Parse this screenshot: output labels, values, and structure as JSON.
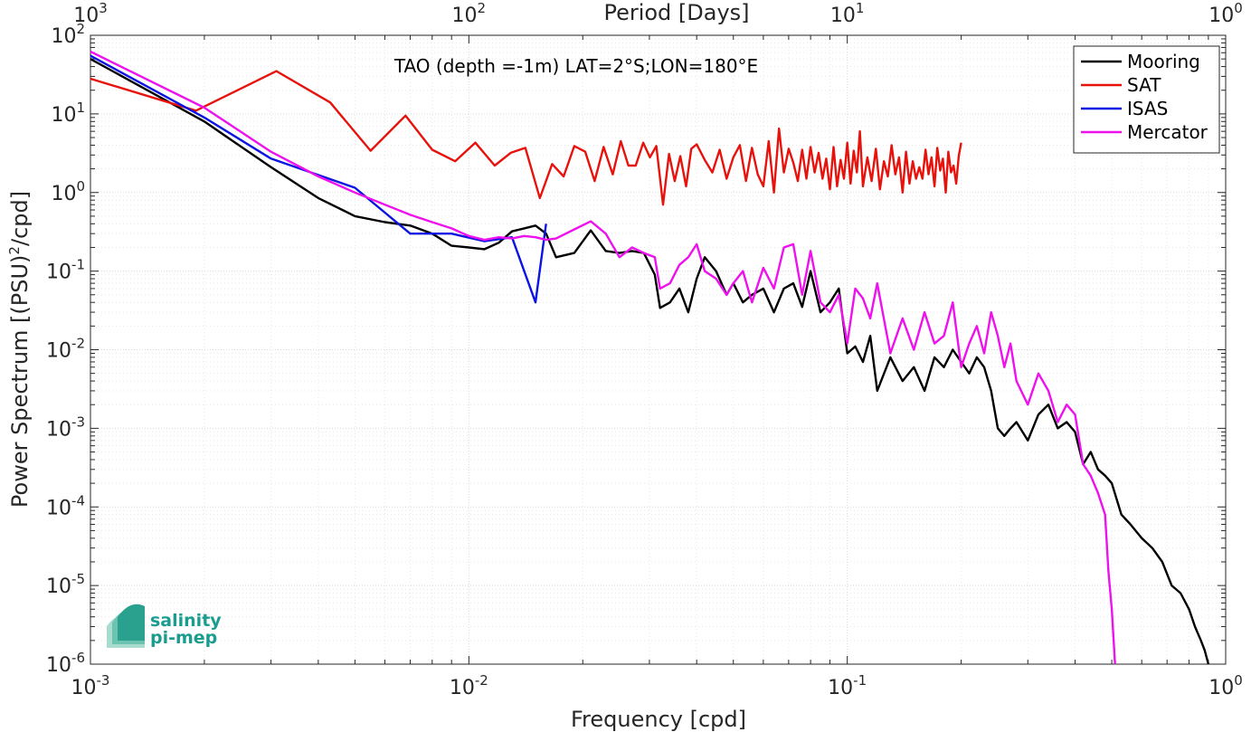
{
  "chart_data": {
    "type": "line",
    "title": "TAO (depth =-1m) LAT=2°S;LON=180°E",
    "xlabel": "Frequency [cpd]",
    "ylabel": "Power Spectrum [(PSU)",
    "ylabel_sup": "2",
    "ylabel_tail": "/cpd]",
    "top_xlabel": "Period [Days]",
    "xscale": "log",
    "yscale": "log",
    "xlim": [
      0.001,
      1
    ],
    "ylim": [
      1e-06,
      100
    ],
    "grid": true,
    "legend_position": "top-right",
    "x_ticks": [
      {
        "base": "10",
        "exp": "-3",
        "value": 0.001
      },
      {
        "base": "10",
        "exp": "-2",
        "value": 0.01
      },
      {
        "base": "10",
        "exp": "-1",
        "value": 0.1
      },
      {
        "base": "10",
        "exp": "0",
        "value": 1
      }
    ],
    "top_ticks": [
      {
        "base": "10",
        "exp": "3",
        "value": 0.001
      },
      {
        "base": "10",
        "exp": "2",
        "value": 0.01
      },
      {
        "base": "10",
        "exp": "1",
        "value": 0.1
      },
      {
        "base": "10",
        "exp": "0",
        "value": 1
      }
    ],
    "y_ticks": [
      {
        "base": "10",
        "exp": "2",
        "value": 100
      },
      {
        "base": "10",
        "exp": "1",
        "value": 10
      },
      {
        "base": "10",
        "exp": "0",
        "value": 1
      },
      {
        "base": "10",
        "exp": "-1",
        "value": 0.1
      },
      {
        "base": "10",
        "exp": "-2",
        "value": 0.01
      },
      {
        "base": "10",
        "exp": "-3",
        "value": 0.001
      },
      {
        "base": "10",
        "exp": "-4",
        "value": 0.0001
      },
      {
        "base": "10",
        "exp": "-5",
        "value": 1e-05
      },
      {
        "base": "10",
        "exp": "-6",
        "value": 1e-06
      }
    ],
    "series": [
      {
        "name": "Mooring",
        "color": "#000000",
        "x": [
          0.001,
          0.002,
          0.003,
          0.004,
          0.005,
          0.006,
          0.007,
          0.008,
          0.009,
          0.01,
          0.011,
          0.012,
          0.013,
          0.014,
          0.015,
          0.016,
          0.017,
          0.019,
          0.021,
          0.023,
          0.025,
          0.027,
          0.029,
          0.031,
          0.032,
          0.034,
          0.036,
          0.038,
          0.04,
          0.042,
          0.045,
          0.048,
          0.05,
          0.053,
          0.056,
          0.06,
          0.064,
          0.068,
          0.072,
          0.076,
          0.08,
          0.085,
          0.09,
          0.095,
          0.1,
          0.105,
          0.11,
          0.115,
          0.12,
          0.13,
          0.14,
          0.15,
          0.16,
          0.17,
          0.18,
          0.19,
          0.2,
          0.21,
          0.22,
          0.23,
          0.24,
          0.25,
          0.26,
          0.27,
          0.28,
          0.3,
          0.32,
          0.34,
          0.36,
          0.38,
          0.4,
          0.42,
          0.44,
          0.46,
          0.48,
          0.5,
          0.53,
          0.56,
          0.6,
          0.64,
          0.68,
          0.72,
          0.76,
          0.8,
          0.83,
          0.86,
          0.88,
          0.9
        ],
        "y": [
          50,
          8,
          2.1,
          0.85,
          0.5,
          0.42,
          0.38,
          0.3,
          0.21,
          0.2,
          0.19,
          0.23,
          0.32,
          0.35,
          0.38,
          0.3,
          0.15,
          0.17,
          0.33,
          0.18,
          0.17,
          0.18,
          0.17,
          0.09,
          0.034,
          0.04,
          0.06,
          0.03,
          0.08,
          0.15,
          0.1,
          0.05,
          0.07,
          0.04,
          0.05,
          0.06,
          0.03,
          0.06,
          0.07,
          0.035,
          0.1,
          0.03,
          0.04,
          0.06,
          0.009,
          0.011,
          0.007,
          0.015,
          0.003,
          0.008,
          0.004,
          0.006,
          0.003,
          0.008,
          0.006,
          0.01,
          0.007,
          0.005,
          0.008,
          0.006,
          0.003,
          0.001,
          0.0008,
          0.001,
          0.0012,
          0.0007,
          0.0015,
          0.002,
          0.001,
          0.0012,
          0.0009,
          0.00035,
          0.0005,
          0.0003,
          0.00025,
          0.0002,
          8e-05,
          6e-05,
          4e-05,
          3e-05,
          2e-05,
          1e-05,
          8e-06,
          5e-06,
          3e-06,
          2e-06,
          1.5e-06,
          1e-06
        ]
      },
      {
        "name": "SAT",
        "color": "#e8120c",
        "x": [
          0.001,
          0.0019,
          0.0031,
          0.0043,
          0.0055,
          0.0068,
          0.008,
          0.0092,
          0.0104,
          0.0117,
          0.0129,
          0.0141,
          0.0154,
          0.0166,
          0.0178,
          0.019,
          0.0203,
          0.0215,
          0.0227,
          0.024,
          0.0252,
          0.0264,
          0.0276,
          0.0289,
          0.0301,
          0.0313,
          0.0326,
          0.0338,
          0.035,
          0.0362,
          0.0375,
          0.0387,
          0.04,
          0.042,
          0.044,
          0.046,
          0.048,
          0.05,
          0.052,
          0.054,
          0.056,
          0.058,
          0.06,
          0.062,
          0.064,
          0.066,
          0.068,
          0.07,
          0.072,
          0.074,
          0.076,
          0.078,
          0.08,
          0.082,
          0.084,
          0.086,
          0.088,
          0.09,
          0.092,
          0.094,
          0.096,
          0.098,
          0.1,
          0.102,
          0.104,
          0.106,
          0.108,
          0.11,
          0.113,
          0.116,
          0.119,
          0.122,
          0.125,
          0.128,
          0.131,
          0.134,
          0.137,
          0.14,
          0.143,
          0.146,
          0.149,
          0.152,
          0.155,
          0.158,
          0.161,
          0.164,
          0.167,
          0.17,
          0.173,
          0.176,
          0.179,
          0.182,
          0.185,
          0.188,
          0.191,
          0.194,
          0.197,
          0.2
        ],
        "y": [
          28,
          11,
          35,
          14,
          3.4,
          9.5,
          3.5,
          2.5,
          4.3,
          2.2,
          3.2,
          3.7,
          0.85,
          2.3,
          1.6,
          3.9,
          3.3,
          1.4,
          3.8,
          1.7,
          4.5,
          2.2,
          2.2,
          4.3,
          2.8,
          3.9,
          0.7,
          3.1,
          1.4,
          2.9,
          1.2,
          3.6,
          4.1,
          2.6,
          1.8,
          3.5,
          1.5,
          2.8,
          4,
          1.4,
          3.7,
          1.7,
          1.2,
          4.5,
          1,
          6.5,
          1.8,
          3.6,
          2.4,
          1.4,
          3.5,
          1.5,
          3.8,
          1.8,
          3.2,
          1.5,
          2.7,
          1.1,
          3.8,
          1.2,
          2.6,
          1.5,
          4.3,
          1.3,
          3.4,
          1.8,
          6,
          1.2,
          2.8,
          1.4,
          3.6,
          1.1,
          2.5,
          1.6,
          4,
          1.7,
          2.8,
          1,
          3.3,
          1.3,
          2.5,
          1.5,
          2.1,
          1.5,
          3.5,
          1.7,
          2.8,
          1.2,
          3.7,
          1.9,
          2.7,
          1,
          3.3,
          1.8,
          2.2,
          1.3,
          2.9,
          4.3
        ]
      },
      {
        "name": "ISAS",
        "color": "#0b14e0",
        "x": [
          0.001,
          0.002,
          0.003,
          0.005,
          0.007,
          0.009,
          0.011,
          0.013,
          0.015,
          0.016
        ],
        "y": [
          55,
          9,
          2.7,
          1.15,
          0.3,
          0.3,
          0.24,
          0.27,
          0.04,
          0.4
        ]
      },
      {
        "name": "Mercator",
        "color": "#ee11ee",
        "x": [
          0.001,
          0.002,
          0.003,
          0.004,
          0.005,
          0.006,
          0.007,
          0.008,
          0.009,
          0.01,
          0.011,
          0.012,
          0.013,
          0.014,
          0.015,
          0.016,
          0.017,
          0.019,
          0.021,
          0.023,
          0.025,
          0.027,
          0.029,
          0.031,
          0.032,
          0.034,
          0.036,
          0.038,
          0.04,
          0.042,
          0.045,
          0.048,
          0.05,
          0.053,
          0.056,
          0.06,
          0.064,
          0.068,
          0.072,
          0.076,
          0.08,
          0.085,
          0.09,
          0.095,
          0.1,
          0.105,
          0.11,
          0.115,
          0.12,
          0.13,
          0.14,
          0.15,
          0.16,
          0.17,
          0.18,
          0.19,
          0.2,
          0.21,
          0.22,
          0.23,
          0.24,
          0.25,
          0.26,
          0.27,
          0.28,
          0.3,
          0.32,
          0.34,
          0.36,
          0.38,
          0.4,
          0.42,
          0.44,
          0.46,
          0.48,
          0.49,
          0.5,
          0.51
        ],
        "y": [
          62,
          12,
          3.3,
          1.6,
          1,
          0.7,
          0.52,
          0.42,
          0.35,
          0.28,
          0.25,
          0.27,
          0.26,
          0.28,
          0.27,
          0.25,
          0.26,
          0.34,
          0.43,
          0.3,
          0.15,
          0.2,
          0.17,
          0.15,
          0.06,
          0.07,
          0.12,
          0.15,
          0.22,
          0.1,
          0.08,
          0.05,
          0.07,
          0.1,
          0.04,
          0.11,
          0.06,
          0.2,
          0.22,
          0.05,
          0.18,
          0.04,
          0.03,
          0.05,
          0.012,
          0.06,
          0.045,
          0.025,
          0.07,
          0.009,
          0.025,
          0.01,
          0.03,
          0.012,
          0.015,
          0.04,
          0.006,
          0.012,
          0.02,
          0.009,
          0.03,
          0.015,
          0.006,
          0.012,
          0.004,
          0.002,
          0.005,
          0.003,
          0.0012,
          0.002,
          0.0015,
          0.00035,
          0.00025,
          0.00015,
          8e-05,
          1.5e-05,
          5e-06,
          1e-06
        ]
      }
    ]
  },
  "logo": {
    "line1": "salinity",
    "line2": "pi-mep"
  }
}
